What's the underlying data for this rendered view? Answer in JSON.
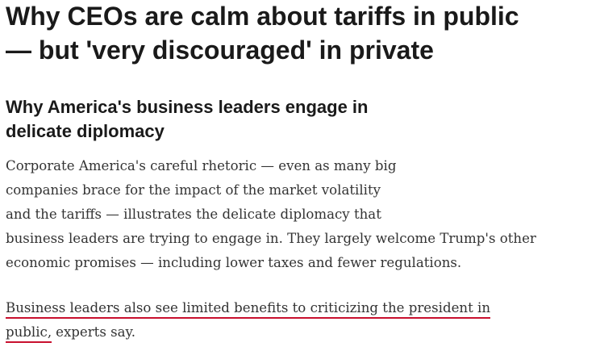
{
  "headline": {
    "lines": [
      "Why CEOs are calm about tariffs in public",
      "— but 'very discouraged' in private"
    ]
  },
  "subheading": {
    "lines": [
      "Why America's business leaders engage in",
      "delicate diplomacy"
    ]
  },
  "paragraphs": [
    {
      "lines": [
        "Corporate America's careful rhetoric — even as many big",
        "companies brace for the impact of the market volatility",
        "and the tariffs — illustrates the delicate diplomacy that",
        "business leaders are trying to engage in. They largely welcome Trump's other",
        "economic promises — including lower taxes and fewer regulations."
      ]
    },
    {
      "underlined": [
        "Business leaders also see limited benefits to criticizing the president in",
        "public,"
      ],
      "rest": "experts say."
    }
  ]
}
